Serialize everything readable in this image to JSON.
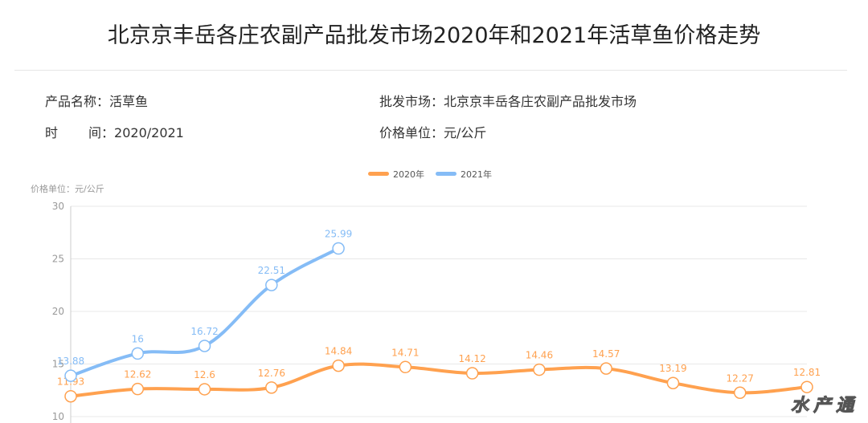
{
  "title": "北京京丰岳各庄农副产品批发市场2020年和2021年活草鱼价格走势",
  "info": {
    "product_label": "产品名称：",
    "product_value": "活草鱼",
    "market_label": "批发市场：",
    "market_value": "北京京丰岳各庄农副产品批发市场",
    "time_label_a": "时",
    "time_label_b": "间：",
    "time_value": "2020/2021",
    "unit_label": "价格单位：",
    "unit_value": "元/公斤"
  },
  "watermark": "水产通",
  "colors": {
    "s2020": "#ffa14f",
    "s2021": "#85bcf6",
    "grid": "#e8e8e8",
    "axis_text": "#999999"
  },
  "chart_data": {
    "type": "line",
    "ylabel": "价格单位：元/公斤",
    "ylim": [
      10,
      30
    ],
    "yticks": [
      10,
      15,
      20,
      25,
      30
    ],
    "legend_position": "top-center",
    "grid": true,
    "series": [
      {
        "name": "2020年",
        "color": "#ffa14f",
        "values": [
          11.93,
          12.62,
          12.6,
          12.76,
          14.84,
          14.71,
          14.12,
          14.46,
          14.57,
          13.19,
          12.27,
          12.81
        ]
      },
      {
        "name": "2021年",
        "color": "#85bcf6",
        "values": [
          13.88,
          16,
          16.72,
          22.51,
          25.99
        ]
      }
    ],
    "labels_2020": [
      "11.93",
      "12.62",
      "12.6",
      "12.76",
      "14.84",
      "14.71",
      "14.12",
      "14.46",
      "14.57",
      "13.19",
      "12.27",
      "12.81"
    ],
    "labels_2021": [
      "13.88",
      "16",
      "16.72",
      "22.51",
      "25.99"
    ]
  }
}
